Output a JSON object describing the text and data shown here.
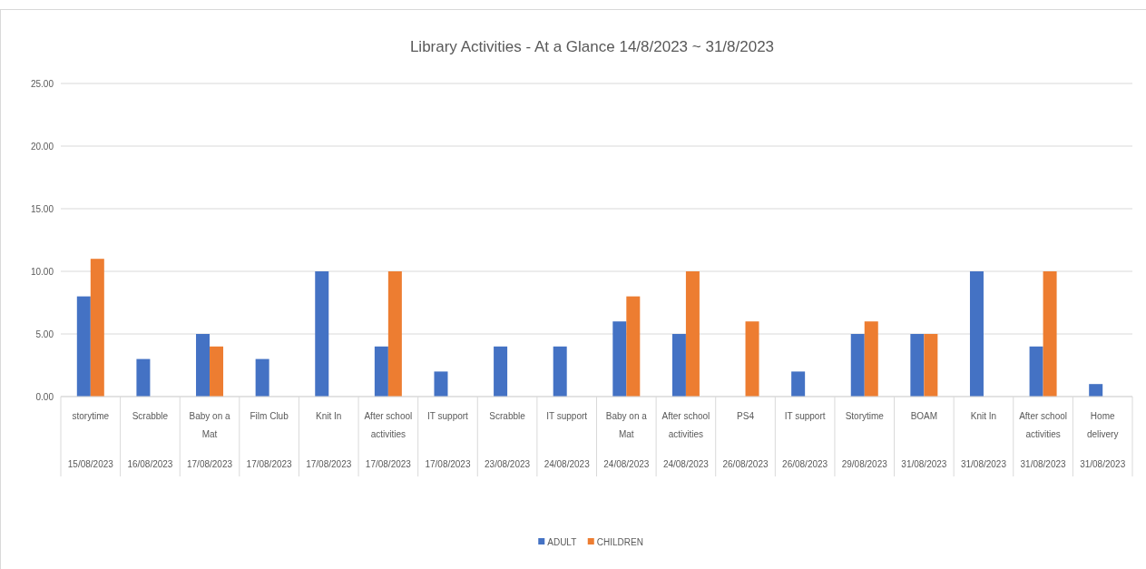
{
  "chart_data": {
    "type": "bar",
    "title": "Library Activities - At a Glance 14/8/2023 ~ 31/8/2023",
    "categories": [
      "storytime\n15/08/2023",
      "Scrabble\n16/08/2023",
      "Baby on a Mat\n17/08/2023",
      "Film Club\n17/08/2023",
      "Knit In\n17/08/2023",
      "After school activities\n17/08/2023",
      "IT support\n17/08/2023",
      "Scrabble\n23/08/2023",
      "IT support\n24/08/2023",
      "Baby on a Mat\n24/08/2023",
      "After school activities\n24/08/2023",
      "PS4\n26/08/2023",
      "IT support\n26/08/2023",
      "Storytime\n29/08/2023",
      "BOAM\n31/08/2023",
      "Knit In\n31/08/2023",
      "After school activities\n31/08/2023",
      "Home delivery\n31/08/2023"
    ],
    "series": [
      {
        "name": "ADULT",
        "color": "#4472c4",
        "values": [
          8,
          3,
          5,
          3,
          10,
          4,
          2,
          4,
          4,
          6,
          5,
          null,
          2,
          5,
          5,
          10,
          4,
          1
        ]
      },
      {
        "name": "CHILDREN",
        "color": "#ed7d31",
        "values": [
          11,
          null,
          4,
          null,
          null,
          10,
          null,
          null,
          null,
          8,
          10,
          6,
          null,
          6,
          5,
          null,
          10,
          null
        ]
      }
    ],
    "ylim": [
      0,
      25
    ],
    "yticks": [
      {
        "value": 0,
        "label": "0.00"
      },
      {
        "value": 5,
        "label": "5.00"
      },
      {
        "value": 10,
        "label": "10.00"
      },
      {
        "value": 15,
        "label": "15.00"
      },
      {
        "value": 20,
        "label": "20.00"
      },
      {
        "value": 25,
        "label": "25.00"
      }
    ],
    "grid": "y",
    "legend": "bottom"
  }
}
